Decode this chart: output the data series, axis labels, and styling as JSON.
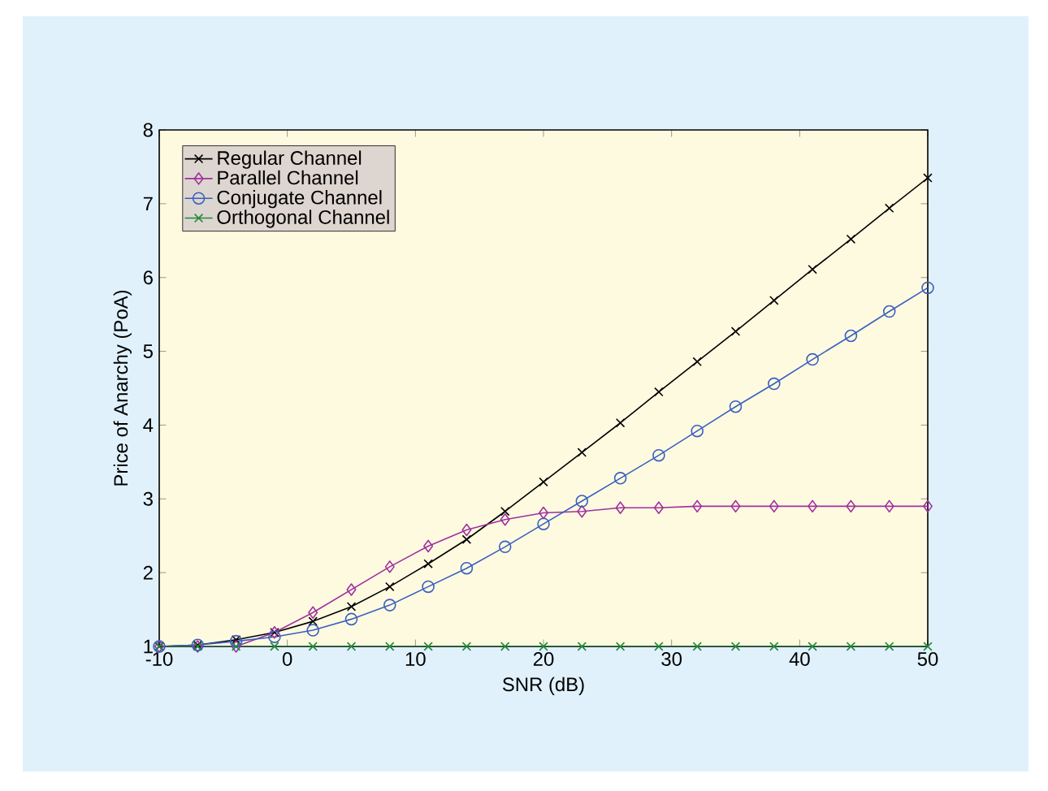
{
  "chart_data": {
    "type": "line",
    "xlabel": "SNR (dB)",
    "ylabel": "Price of Anarchy (PoA)",
    "x": [
      -10,
      -7,
      -4,
      -1,
      2,
      5,
      8,
      11,
      14,
      17,
      20,
      23,
      26,
      29,
      32,
      35,
      38,
      41,
      44,
      47,
      50
    ],
    "series": [
      {
        "name": "Regular Channel",
        "color": "#000000",
        "marker": "cross",
        "values": [
          1.0,
          1.02,
          1.09,
          1.19,
          1.34,
          1.54,
          1.81,
          2.12,
          2.45,
          2.83,
          3.23,
          3.63,
          4.03,
          4.45,
          4.86,
          5.27,
          5.69,
          6.11,
          6.52,
          6.94,
          7.35
        ]
      },
      {
        "name": "Parallel Channel",
        "color": "#a0309e",
        "marker": "diamond",
        "values": [
          1.0,
          1.0,
          1.0,
          1.19,
          1.46,
          1.77,
          2.08,
          2.36,
          2.58,
          2.72,
          2.81,
          2.83,
          2.88,
          2.88,
          2.9,
          2.9,
          2.9,
          2.9,
          2.9,
          2.9,
          2.9
        ]
      },
      {
        "name": "Conjugate Channel",
        "color": "#3a5fbf",
        "marker": "circle",
        "values": [
          1.0,
          1.02,
          1.07,
          1.13,
          1.22,
          1.37,
          1.56,
          1.81,
          2.06,
          2.35,
          2.66,
          2.97,
          3.28,
          3.59,
          3.92,
          4.25,
          4.56,
          4.89,
          5.21,
          5.54,
          5.86
        ]
      },
      {
        "name": "Orthogonal Channel",
        "color": "#1f8a3a",
        "marker": "cross",
        "values": [
          1,
          1,
          1,
          1,
          1,
          1,
          1,
          1,
          1,
          1,
          1,
          1,
          1,
          1,
          1,
          1,
          1,
          1,
          1,
          1,
          1
        ]
      }
    ],
    "xlim": [
      -10,
      50
    ],
    "ylim": [
      1,
      8
    ],
    "xticks": [
      -10,
      0,
      10,
      20,
      30,
      40,
      50
    ],
    "yticks": [
      1,
      2,
      3,
      4,
      5,
      6,
      7,
      8
    ],
    "legend": "top left",
    "grid": false,
    "line_style": "solid"
  }
}
